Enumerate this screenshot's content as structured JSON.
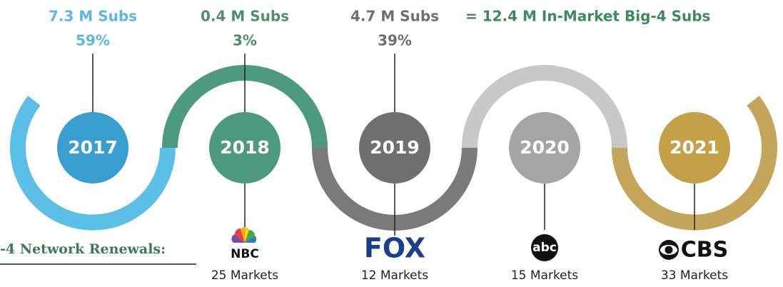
{
  "summary": {
    "total": "= 12.4 M In-Market Big-4 Subs",
    "renewals_label": "-4 Network Renewals:"
  },
  "years": [
    {
      "year": "2017",
      "subs": "7.3 M Subs",
      "share": "59%"
    },
    {
      "year": "2018",
      "subs": "0.4 M Subs",
      "share": "3%",
      "network": "NBC",
      "markets": "25 Markets"
    },
    {
      "year": "2019",
      "subs": "4.7 M Subs",
      "share": "39%",
      "network": "FOX",
      "markets": "12 Markets"
    },
    {
      "year": "2020",
      "network": "abc",
      "markets": "15 Markets"
    },
    {
      "year": "2021",
      "network": "CBS",
      "markets": "33 Markets"
    }
  ]
}
